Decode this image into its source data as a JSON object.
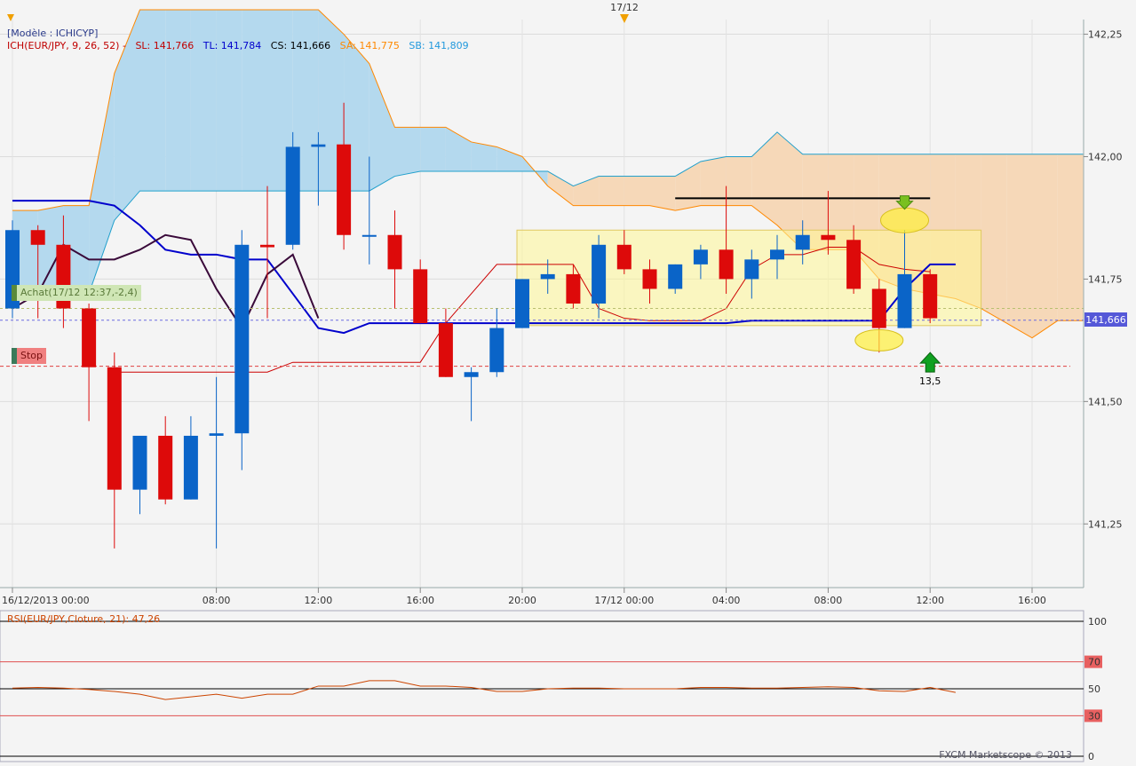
{
  "header": {
    "model_label": "[Modèle : ICHICYP]",
    "top_date_marker": "17/12"
  },
  "ichimoku_legend": {
    "name": "ICH(EUR/JPY, 9, 26, 52) -",
    "sl": "SL: 141,766",
    "tl": "TL: 141,784",
    "cs": "CS: 141,666",
    "sa": "SA: 141,775",
    "sb": "SB: 141,809",
    "colors": {
      "name": "#c00000",
      "sl": "#c00000",
      "tl": "#0000cc",
      "cs": "#000000",
      "sa": "#ff8800",
      "sb": "#2299dd"
    }
  },
  "orders": {
    "buy_label": "Achat(17/12 12:37,-2,4)",
    "stop_label": "Stop",
    "arrow_value": "13,5"
  },
  "price_axis": {
    "ticks": [
      "142,25",
      "142,00",
      "141,75",
      "141,50",
      "141,25"
    ],
    "current_price": "141,666"
  },
  "time_axis": {
    "ticks": [
      "16/12/2013 00:00",
      "08:00",
      "12:00",
      "16:00",
      "20:00",
      "17/12 00:00",
      "04:00",
      "08:00",
      "12:00",
      "16:00"
    ]
  },
  "rsi": {
    "label": "RSI(EUR/JPY,Cloture, 21): 47,26",
    "ticks": [
      "100",
      "70",
      "50",
      "30",
      "0"
    ]
  },
  "footer": {
    "copyright": "FXCM Marketscope © 2013"
  },
  "colors": {
    "bull": "#0a64c8",
    "bear": "#dd0a0a",
    "bull_dark": "#3c6ea0",
    "bear_dark": "#a82836",
    "tenkan": "#0000cc",
    "kijun": "#cc0000",
    "chikou": "#3a0a3a",
    "cloud_bull": "#b4d9ee",
    "cloud_bear": "#f6d8b8",
    "senkou_a": "#ff8800",
    "senkou_b": "#22a0cc",
    "rsi_line": "#cc4400"
  },
  "chart_data": {
    "type": "candlestick",
    "interval": "1h",
    "ylim": [
      141.12,
      142.28
    ],
    "candles": [
      {
        "t": "16/12 00:00",
        "o": 141.69,
        "h": 141.87,
        "l": 141.67,
        "c": 141.85
      },
      {
        "t": "16/12 01:00",
        "o": 141.85,
        "h": 141.86,
        "l": 141.67,
        "c": 141.82
      },
      {
        "t": "16/12 02:00",
        "o": 141.82,
        "h": 141.88,
        "l": 141.65,
        "c": 141.69
      },
      {
        "t": "16/12 03:00",
        "o": 141.69,
        "h": 141.7,
        "l": 141.46,
        "c": 141.57
      },
      {
        "t": "16/12 04:00",
        "o": 141.57,
        "h": 141.6,
        "l": 141.2,
        "c": 141.32
      },
      {
        "t": "16/12 05:00",
        "o": 141.32,
        "h": 141.43,
        "l": 141.27,
        "c": 141.43
      },
      {
        "t": "16/12 06:00",
        "o": 141.43,
        "h": 141.47,
        "l": 141.29,
        "c": 141.3
      },
      {
        "t": "16/12 07:00",
        "o": 141.3,
        "h": 141.47,
        "l": 141.3,
        "c": 141.43
      },
      {
        "t": "16/12 08:00",
        "o": 141.43,
        "h": 141.55,
        "l": 141.2,
        "c": 141.435
      },
      {
        "t": "16/12 09:00",
        "o": 141.435,
        "h": 141.85,
        "l": 141.36,
        "c": 141.82
      },
      {
        "t": "16/12 10:00",
        "o": 141.82,
        "h": 141.94,
        "l": 141.67,
        "c": 141.815
      },
      {
        "t": "16/12 11:00",
        "o": 141.82,
        "h": 142.05,
        "l": 141.81,
        "c": 142.02
      },
      {
        "t": "16/12 12:00",
        "o": 142.02,
        "h": 142.05,
        "l": 141.9,
        "c": 142.025
      },
      {
        "t": "16/12 13:00",
        "o": 142.025,
        "h": 142.11,
        "l": 141.81,
        "c": 141.84
      },
      {
        "t": "16/12 14:00",
        "o": 141.84,
        "h": 142.0,
        "l": 141.78,
        "c": 141.84
      },
      {
        "t": "16/12 15:00",
        "o": 141.84,
        "h": 141.89,
        "l": 141.69,
        "c": 141.77
      },
      {
        "t": "16/12 16:00",
        "o": 141.77,
        "h": 141.79,
        "l": 141.66,
        "c": 141.66
      },
      {
        "t": "16/12 17:00",
        "o": 141.66,
        "h": 141.69,
        "l": 141.55,
        "c": 141.55
      },
      {
        "t": "16/12 18:00",
        "o": 141.55,
        "h": 141.57,
        "l": 141.46,
        "c": 141.56
      },
      {
        "t": "16/12 19:00",
        "o": 141.56,
        "h": 141.69,
        "l": 141.55,
        "c": 141.65
      },
      {
        "t": "16/12 20:00",
        "o": 141.65,
        "h": 141.75,
        "l": 141.65,
        "c": 141.75
      },
      {
        "t": "16/12 21:00",
        "o": 141.75,
        "h": 141.79,
        "l": 141.72,
        "c": 141.76
      },
      {
        "t": "16/12 22:00",
        "o": 141.76,
        "h": 141.78,
        "l": 141.69,
        "c": 141.7
      },
      {
        "t": "16/12 23:00",
        "o": 141.7,
        "h": 141.84,
        "l": 141.67,
        "c": 141.82
      },
      {
        "t": "17/12 00:00",
        "o": 141.82,
        "h": 141.85,
        "l": 141.76,
        "c": 141.77
      },
      {
        "t": "17/12 01:00",
        "o": 141.77,
        "h": 141.79,
        "l": 141.7,
        "c": 141.73
      },
      {
        "t": "17/12 02:00",
        "o": 141.73,
        "h": 141.78,
        "l": 141.72,
        "c": 141.78
      },
      {
        "t": "17/12 03:00",
        "o": 141.78,
        "h": 141.82,
        "l": 141.75,
        "c": 141.81
      },
      {
        "t": "17/12 04:00",
        "o": 141.81,
        "h": 141.94,
        "l": 141.72,
        "c": 141.75
      },
      {
        "t": "17/12 05:00",
        "o": 141.75,
        "h": 141.81,
        "l": 141.71,
        "c": 141.79
      },
      {
        "t": "17/12 06:00",
        "o": 141.79,
        "h": 141.84,
        "l": 141.75,
        "c": 141.81
      },
      {
        "t": "17/12 07:00",
        "o": 141.81,
        "h": 141.87,
        "l": 141.78,
        "c": 141.84
      },
      {
        "t": "17/12 08:00",
        "o": 141.84,
        "h": 141.93,
        "l": 141.8,
        "c": 141.83
      },
      {
        "t": "17/12 09:00",
        "o": 141.83,
        "h": 141.86,
        "l": 141.72,
        "c": 141.73
      },
      {
        "t": "17/12 10:00",
        "o": 141.73,
        "h": 141.75,
        "l": 141.6,
        "c": 141.65
      },
      {
        "t": "17/12 11:00",
        "o": 141.65,
        "h": 141.85,
        "l": 141.65,
        "c": 141.76
      },
      {
        "t": "17/12 12:00",
        "o": 141.76,
        "h": 141.77,
        "l": 141.66,
        "c": 141.67
      }
    ],
    "tenkan_sen": [
      141.91,
      141.91,
      141.91,
      141.91,
      141.9,
      141.86,
      141.81,
      141.8,
      141.8,
      141.79,
      141.79,
      141.72,
      141.65,
      141.64,
      141.66,
      141.66,
      141.66,
      141.66,
      141.66,
      141.66,
      141.66,
      141.66,
      141.66,
      141.66,
      141.66,
      141.66,
      141.66,
      141.66,
      141.66,
      141.665,
      141.665,
      141.665,
      141.665,
      141.665,
      141.665,
      141.73,
      141.78,
      141.78
    ],
    "kijun_sen": [
      null,
      null,
      null,
      null,
      141.56,
      141.56,
      141.56,
      141.56,
      141.56,
      141.56,
      141.56,
      141.58,
      141.58,
      141.58,
      141.58,
      141.58,
      141.58,
      141.66,
      141.72,
      141.78,
      141.78,
      141.78,
      141.78,
      141.69,
      141.67,
      141.665,
      141.665,
      141.665,
      141.69,
      141.77,
      141.8,
      141.8,
      141.815,
      141.815,
      141.78,
      141.77,
      141.765
    ],
    "chikou_span": [
      141.69,
      141.72,
      141.82,
      141.79,
      141.79,
      141.81,
      141.84,
      141.83,
      141.73,
      141.65,
      141.76,
      141.8,
      141.67
    ],
    "senkou_a": [
      141.89,
      141.89,
      141.9,
      141.9,
      142.17,
      142.3,
      142.3,
      142.3,
      142.3,
      142.3,
      142.3,
      142.3,
      142.3,
      142.25,
      142.19,
      142.06,
      142.06,
      142.06,
      142.03,
      142.02,
      142.0,
      141.94,
      141.9,
      141.9,
      141.9,
      141.9,
      141.89,
      141.9,
      141.9,
      141.9,
      141.86,
      141.81,
      141.81,
      141.81,
      141.75,
      141.73,
      141.72,
      141.71,
      141.69,
      141.66,
      141.63,
      141.665,
      141.665
    ],
    "senkou_b": [
      141.72,
      141.72,
      141.72,
      141.72,
      141.87,
      141.93,
      141.93,
      141.93,
      141.93,
      141.93,
      141.93,
      141.93,
      141.93,
      141.93,
      141.93,
      141.96,
      141.97,
      141.97,
      141.97,
      141.97,
      141.97,
      141.97,
      141.94,
      141.96,
      141.96,
      141.96,
      141.96,
      141.99,
      142.0,
      142.0,
      142.05,
      142.005,
      142.005,
      142.005,
      142.005,
      142.005,
      142.005,
      142.005,
      142.005,
      142.005,
      142.005,
      142.005,
      142.005
    ],
    "resistance_line": [
      {
        "from": "17/12 02:00",
        "to": "17/12 12:00",
        "value": 141.915
      }
    ],
    "order_lines": {
      "buy": 141.69,
      "stop": 141.572,
      "current": 141.666
    },
    "range_box": {
      "from": "16/12 20:00",
      "to": "17/12 14:00",
      "high": 141.85,
      "low": 141.655
    },
    "rsi_values": [
      50.5,
      51,
      50.5,
      49.5,
      48,
      46,
      42,
      44,
      46,
      43,
      46,
      46,
      52,
      52,
      56,
      56,
      52,
      52,
      51,
      48,
      48,
      50,
      50.5,
      50.5,
      50,
      50,
      50,
      51,
      51,
      50.5,
      50.5,
      51,
      51.5,
      51,
      48.5,
      48,
      51,
      47.26
    ]
  }
}
